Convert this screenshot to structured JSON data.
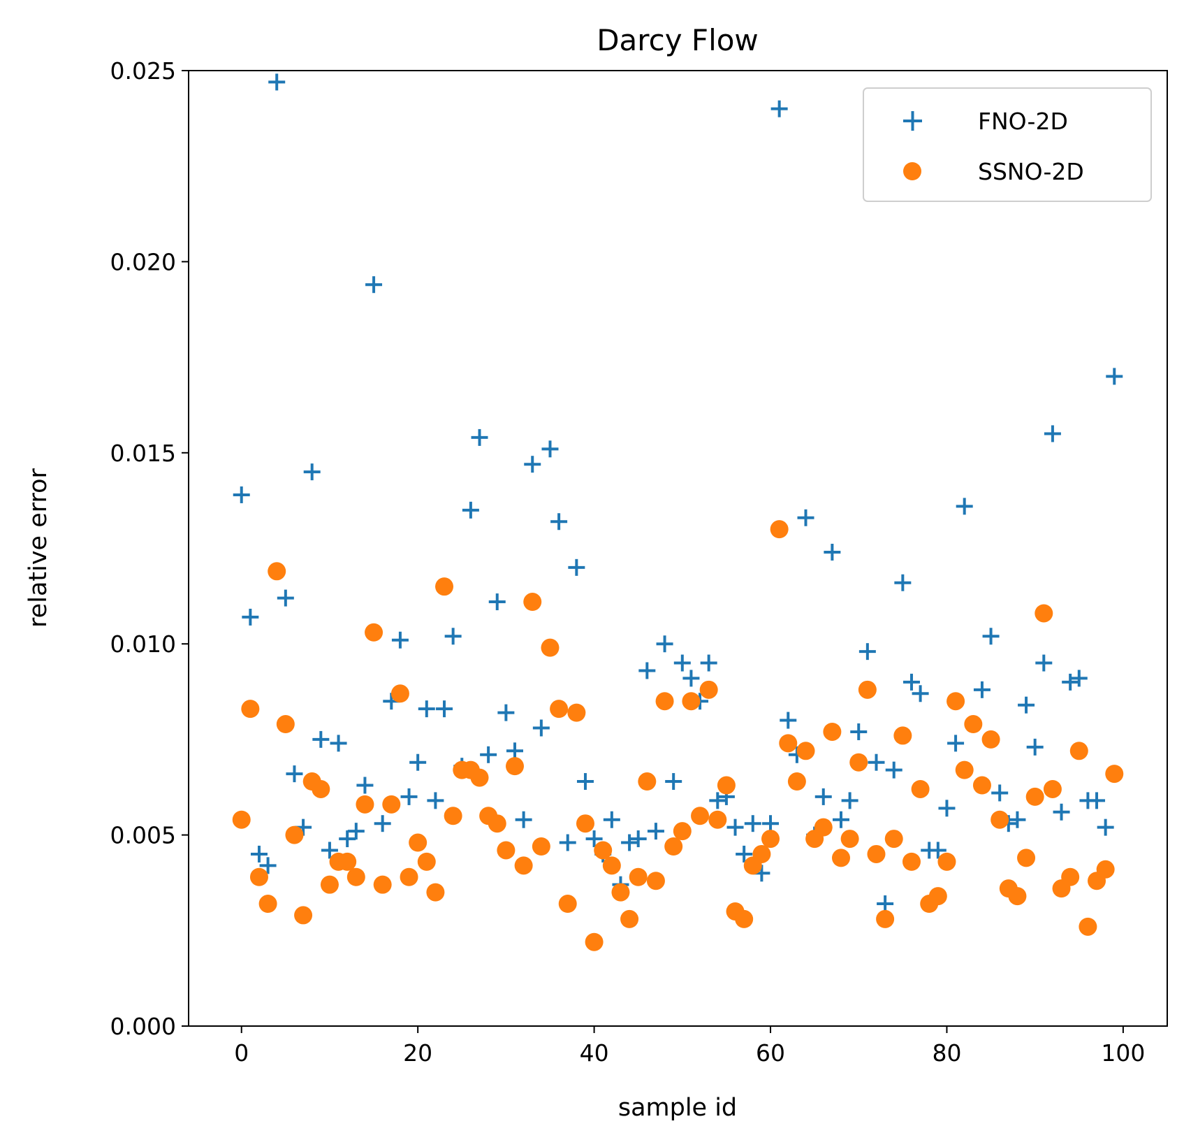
{
  "chart_data": {
    "type": "scatter",
    "title": "Darcy Flow",
    "xlabel": "sample id",
    "ylabel": "relative error",
    "xlim": [
      -6,
      105
    ],
    "ylim": [
      0,
      0.025
    ],
    "xticks": [
      0,
      20,
      40,
      60,
      80,
      100
    ],
    "xtick_labels": [
      "0",
      "20",
      "40",
      "60",
      "80",
      "100"
    ],
    "yticks": [
      0,
      0.005,
      0.01,
      0.015,
      0.02,
      0.025
    ],
    "ytick_labels": [
      "0.000",
      "0.005",
      "0.010",
      "0.015",
      "0.020",
      "0.025"
    ],
    "grid": false,
    "legend_position": "top-right",
    "series": [
      {
        "name": "FNO-2D",
        "marker": "plus",
        "color": "#1f77b4",
        "x": [
          0,
          1,
          2,
          3,
          4,
          5,
          6,
          7,
          8,
          9,
          10,
          11,
          12,
          13,
          14,
          15,
          16,
          17,
          18,
          19,
          20,
          21,
          22,
          23,
          24,
          25,
          26,
          27,
          28,
          29,
          30,
          31,
          32,
          33,
          34,
          35,
          36,
          37,
          38,
          39,
          40,
          41,
          42,
          43,
          44,
          45,
          46,
          47,
          48,
          49,
          50,
          51,
          52,
          53,
          54,
          55,
          56,
          57,
          58,
          59,
          60,
          61,
          62,
          63,
          64,
          65,
          66,
          67,
          68,
          69,
          70,
          71,
          72,
          73,
          74,
          75,
          76,
          77,
          78,
          79,
          80,
          81,
          82,
          83,
          84,
          85,
          86,
          87,
          88,
          89,
          90,
          91,
          92,
          93,
          94,
          95,
          96,
          97,
          98,
          99
        ],
        "y": [
          0.0139,
          0.0107,
          0.0045,
          0.0042,
          0.0247,
          0.0112,
          0.0066,
          0.0052,
          0.0145,
          0.0075,
          0.0046,
          0.0074,
          0.0049,
          0.0051,
          0.0063,
          0.0194,
          0.0053,
          0.0085,
          0.0101,
          0.006,
          0.0069,
          0.0083,
          0.0059,
          0.0083,
          0.0102,
          0.0068,
          0.0135,
          0.0154,
          0.0071,
          0.0111,
          0.0082,
          0.0072,
          0.0054,
          0.0147,
          0.0078,
          0.0151,
          0.0132,
          0.0048,
          0.012,
          0.0064,
          0.0049,
          0.0045,
          0.0054,
          0.0037,
          0.0048,
          0.0049,
          0.0093,
          0.0051,
          0.01,
          0.0064,
          0.0095,
          0.0091,
          0.0085,
          0.0095,
          0.0059,
          0.006,
          0.0052,
          0.0045,
          0.0053,
          0.004,
          0.0053,
          0.024,
          0.008,
          0.0071,
          0.0133,
          0.005,
          0.006,
          0.0124,
          0.0054,
          0.0059,
          0.0077,
          0.0098,
          0.0069,
          0.0032,
          0.0067,
          0.0116,
          0.009,
          0.0087,
          0.0046,
          0.0046,
          0.0057,
          0.0074,
          0.0136,
          0.0079,
          0.0088,
          0.0102,
          0.0061,
          0.0053,
          0.0054,
          0.0084,
          0.0073,
          0.0095,
          0.0155,
          0.0056,
          0.009,
          0.0091,
          0.0059,
          0.0059,
          0.0052,
          0.017
        ]
      },
      {
        "name": "SSNO-2D",
        "marker": "circle",
        "color": "#ff7f0e",
        "x": [
          0,
          1,
          2,
          3,
          4,
          5,
          6,
          7,
          8,
          9,
          10,
          11,
          12,
          13,
          14,
          15,
          16,
          17,
          18,
          19,
          20,
          21,
          22,
          23,
          24,
          25,
          26,
          27,
          28,
          29,
          30,
          31,
          32,
          33,
          34,
          35,
          36,
          37,
          38,
          39,
          40,
          41,
          42,
          43,
          44,
          45,
          46,
          47,
          48,
          49,
          50,
          51,
          52,
          53,
          54,
          55,
          56,
          57,
          58,
          59,
          60,
          61,
          62,
          63,
          64,
          65,
          66,
          67,
          68,
          69,
          70,
          71,
          72,
          73,
          74,
          75,
          76,
          77,
          78,
          79,
          80,
          81,
          82,
          83,
          84,
          85,
          86,
          87,
          88,
          89,
          90,
          91,
          92,
          93,
          94,
          95,
          96,
          97,
          98,
          99
        ],
        "y": [
          0.0054,
          0.0083,
          0.0039,
          0.0032,
          0.0119,
          0.0079,
          0.005,
          0.0029,
          0.0064,
          0.0062,
          0.0037,
          0.0043,
          0.0043,
          0.0039,
          0.0058,
          0.0103,
          0.0037,
          0.0058,
          0.0087,
          0.0039,
          0.0048,
          0.0043,
          0.0035,
          0.0115,
          0.0055,
          0.0067,
          0.0067,
          0.0065,
          0.0055,
          0.0053,
          0.0046,
          0.0068,
          0.0042,
          0.0111,
          0.0047,
          0.0099,
          0.0083,
          0.0032,
          0.0082,
          0.0053,
          0.0022,
          0.0046,
          0.0042,
          0.0035,
          0.0028,
          0.0039,
          0.0064,
          0.0038,
          0.0085,
          0.0047,
          0.0051,
          0.0085,
          0.0055,
          0.0088,
          0.0054,
          0.0063,
          0.003,
          0.0028,
          0.0042,
          0.0045,
          0.0049,
          0.013,
          0.0074,
          0.0064,
          0.0072,
          0.0049,
          0.0052,
          0.0077,
          0.0044,
          0.0049,
          0.0069,
          0.0088,
          0.0045,
          0.0028,
          0.0049,
          0.0076,
          0.0043,
          0.0062,
          0.0032,
          0.0034,
          0.0043,
          0.0085,
          0.0067,
          0.0079,
          0.0063,
          0.0075,
          0.0054,
          0.0036,
          0.0034,
          0.0044,
          0.006,
          0.0108,
          0.0062,
          0.0036,
          0.0039,
          0.0072,
          0.0026,
          0.0038,
          0.0041,
          0.0066
        ]
      }
    ]
  }
}
